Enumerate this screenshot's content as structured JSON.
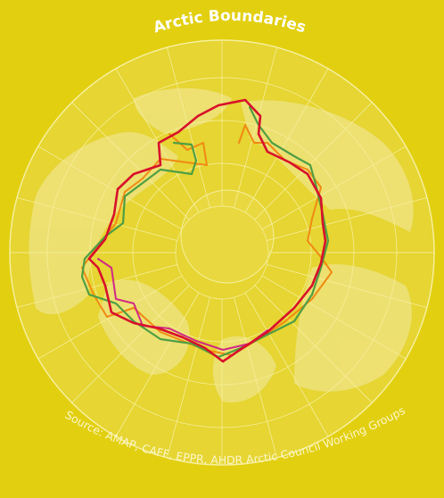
{
  "map": {
    "title": "Arctic Boundaries",
    "source": "Source: AMAP, CAFF, EPPR, AHDR Arctic Council Working Groups"
  },
  "colors": {
    "background": "#e2cf10",
    "graticule": "#f4ec8c",
    "land": "#ece07a",
    "ocean_circle": "#e9da4a",
    "boundary_red": "#d8102a",
    "boundary_green": "#4f9e43",
    "boundary_orange": "#f08a12",
    "boundary_magenta": "#d02a84"
  },
  "boundaries": [
    {
      "id": "red",
      "color": "#d8102a"
    },
    {
      "id": "green",
      "color": "#4f9e43"
    },
    {
      "id": "orange",
      "color": "#f08a12"
    },
    {
      "id": "magenta",
      "color": "#d02a84"
    }
  ]
}
